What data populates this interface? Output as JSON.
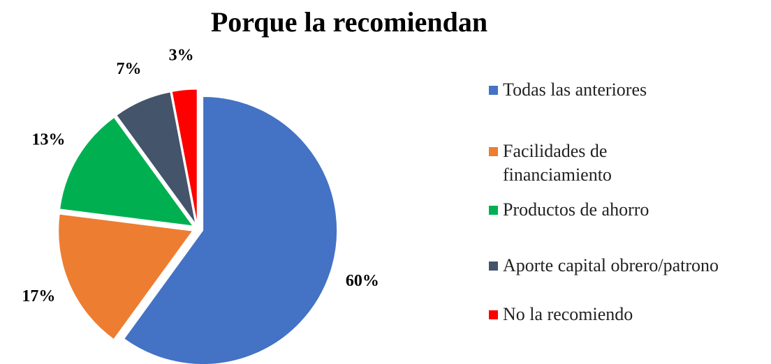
{
  "chart_data": {
    "type": "pie",
    "title": "Porque la recomiendan",
    "categories": [
      "Todas las anteriores",
      "Facilidades de financiamiento",
      "Productos de ahorro",
      "Aporte capital obrero/patrono",
      "No la recomiendo"
    ],
    "values": [
      60,
      17,
      13,
      7,
      3
    ],
    "value_labels": [
      "60%",
      "17%",
      "13%",
      "7%",
      "3%"
    ],
    "colors": [
      "#4472c4",
      "#ed7d31",
      "#00b050",
      "#44546a",
      "#ff0000"
    ],
    "legend": "right"
  }
}
